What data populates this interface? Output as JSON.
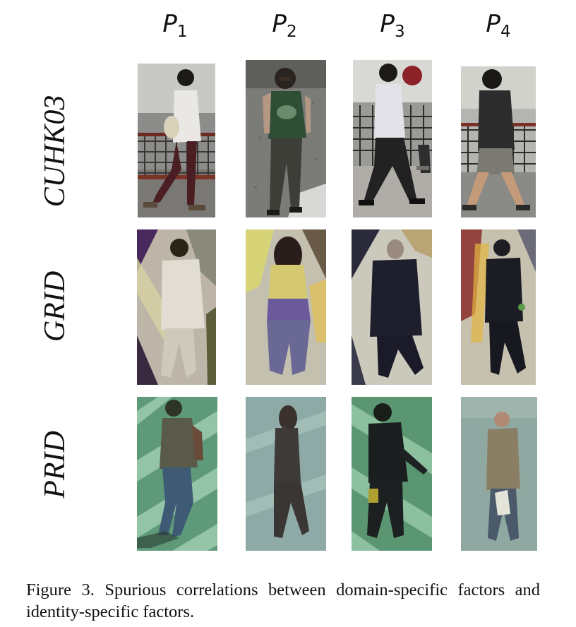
{
  "columns": [
    {
      "letter": "P",
      "index": "1"
    },
    {
      "letter": "P",
      "index": "2"
    },
    {
      "letter": "P",
      "index": "3"
    },
    {
      "letter": "P",
      "index": "4"
    }
  ],
  "rows": [
    {
      "label": "CUHK03"
    },
    {
      "label": "GRID"
    },
    {
      "label": "PRID"
    }
  ],
  "caption": "Figure 3. Spurious correlations between domain-specific factors and identity-specific factors."
}
